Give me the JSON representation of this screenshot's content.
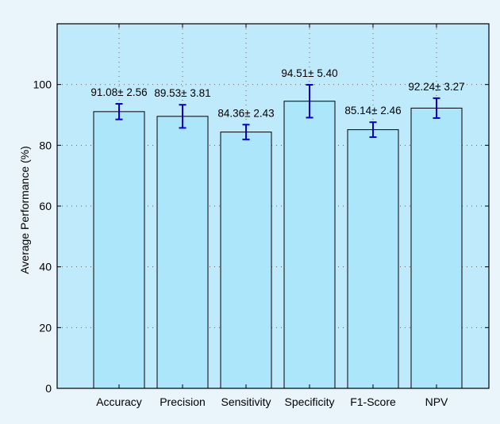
{
  "chart_data": {
    "type": "bar",
    "title": "",
    "xlabel": "",
    "ylabel": "Average Performance (%)",
    "ylim": [
      0,
      120
    ],
    "yticks": [
      0,
      20,
      40,
      60,
      80,
      100
    ],
    "grid": true,
    "categories": [
      "Accuracy",
      "Precision",
      "Sensitivity",
      "Specificity",
      "F1-Score",
      "NPV"
    ],
    "values": [
      91.08,
      89.53,
      84.36,
      94.51,
      85.14,
      92.24
    ],
    "errors": [
      2.56,
      3.81,
      2.43,
      5.4,
      2.46,
      3.27
    ],
    "data_labels": [
      "91.08± 2.56",
      "89.53± 3.81",
      "84.36± 2.43",
      "94.51± 5.40",
      "85.14± 2.46",
      "92.24± 3.27"
    ],
    "colors": {
      "background": "#eaf4fb",
      "plot_background": "#bfeafc",
      "bar_fill": "#abe6fb",
      "bar_stroke": "#000000",
      "error_bar": "#0000cc",
      "grid": "#666666"
    }
  }
}
